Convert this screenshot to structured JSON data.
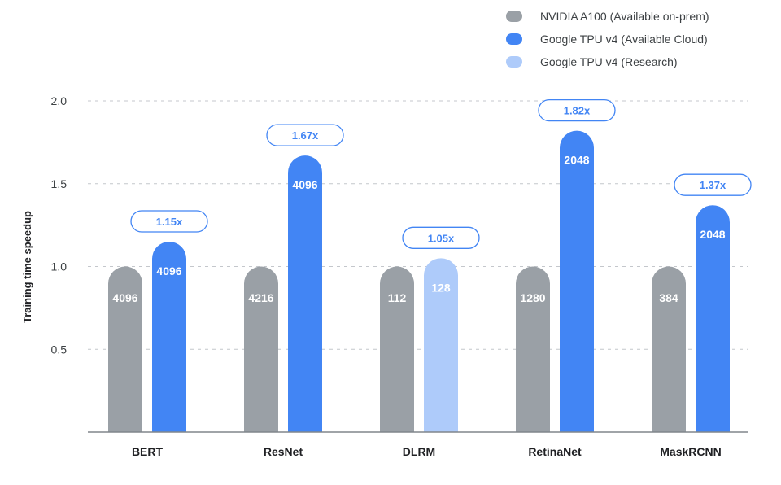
{
  "legend": [
    {
      "label": "NVIDIA A100 (Available on-prem)",
      "color": "#9aa0a6"
    },
    {
      "label": "Google TPU v4 (Available Cloud)",
      "color": "#4285f4"
    },
    {
      "label": "Google TPU v4 (Research)",
      "color": "#aecbfa"
    }
  ],
  "chart_data": {
    "type": "bar",
    "ylabel": "Training time speedup",
    "xlabel": "",
    "ylim": [
      0,
      2.0
    ],
    "yticks": [
      0.5,
      1.0,
      1.5,
      2.0
    ],
    "grid": true,
    "legend_position": "top-right",
    "categories": [
      "BERT",
      "ResNet",
      "DLRM",
      "RetinaNet",
      "MaskRCNN"
    ],
    "series": [
      {
        "name": "NVIDIA A100 (Available on-prem)",
        "color": "#9aa0a6",
        "values": [
          1.0,
          1.0,
          1.0,
          1.0,
          1.0
        ],
        "labels": [
          "4096",
          "4216",
          "112",
          "1280",
          "384"
        ]
      },
      {
        "name": "Google TPU v4",
        "values": [
          1.15,
          1.67,
          1.05,
          1.82,
          1.37
        ],
        "labels": [
          "4096",
          "4096",
          "128",
          "2048",
          "2048"
        ],
        "colors": [
          "#4285f4",
          "#4285f4",
          "#aecbfa",
          "#4285f4",
          "#4285f4"
        ]
      }
    ],
    "speedup_labels": [
      "1.15x",
      "1.67x",
      "1.05x",
      "1.82x",
      "1.37x"
    ]
  }
}
